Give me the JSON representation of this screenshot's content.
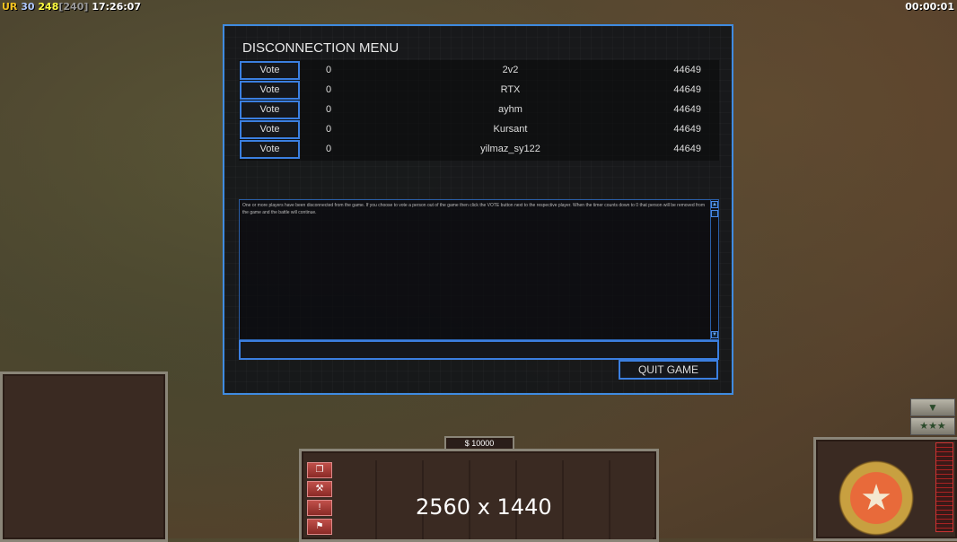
{
  "hud": {
    "ur_label": "UR",
    "ur_value": "30",
    "fps": "248",
    "fps_cap": "[240]",
    "clock": "17:26:07",
    "timer": "00:00:01"
  },
  "dialog": {
    "title": "DISCONNECTION MENU",
    "players": [
      {
        "vote_label": "Vote",
        "votes": "0",
        "name": "2v2",
        "ping": "44649"
      },
      {
        "vote_label": "Vote",
        "votes": "0",
        "name": "RTX",
        "ping": "44649"
      },
      {
        "vote_label": "Vote",
        "votes": "0",
        "name": "ayhm",
        "ping": "44649"
      },
      {
        "vote_label": "Vote",
        "votes": "0",
        "name": "Kursant",
        "ping": "44649"
      },
      {
        "vote_label": "Vote",
        "votes": "0",
        "name": "yilmaz_sy122",
        "ping": "44649"
      }
    ],
    "message": "One or more players have been disconnected from the game. If you choose to vote a person out of the game then click the VOTE button next to the respective player. When the timer counts down to 0 that person will be removed from the game and the battle will continue.",
    "chat_input": "",
    "quit_label": "QUIT GAME"
  },
  "bottom": {
    "money": "$ 10000",
    "resolution": "2560 x 1440"
  },
  "colors": {
    "accent": "#3b7fe0",
    "money": "#ffff40"
  }
}
